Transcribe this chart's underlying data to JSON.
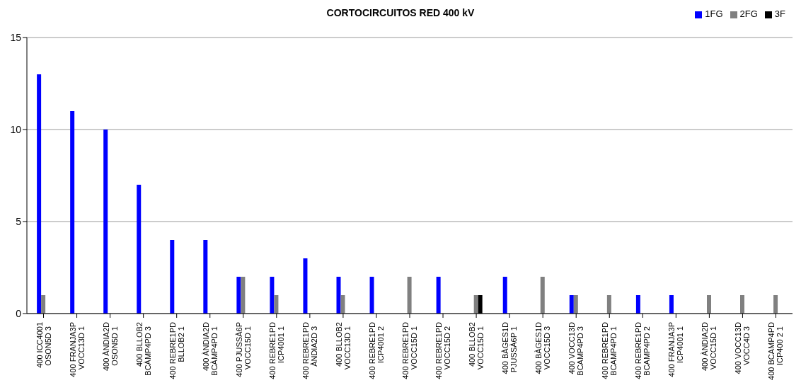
{
  "chart_data": {
    "type": "bar",
    "title": "CORTOCIRCUITOS RED 400 kV",
    "categories": [
      "400 ICC4001 OSON5D 3",
      "400 FRANJA3P VOCC13D 1",
      "400 ÀNDIA2D OSON5D 1",
      "400 BLLOB2 BCÀMP4PD 3",
      "400 REBRE1PD BLLOB2 1",
      "400 ÀNDIA2D BCÀMP4PD 1",
      "400 PJUSSÀ6P VOCC15D 1",
      "400 REBRE1PD ICP4001 1",
      "400 REBRE1PD ÀNDIA2D 3",
      "400 BLLOB2 VOCC13D 1",
      "400 REBRE1PD ICP4001 2",
      "400 REBRE1PD VOCC15D 1",
      "400 REBRE1PD VOCC15D 2",
      "400 BLLOB2 VOCC15D 1",
      "400 BÀGES1D PJUSSÀ6P 1",
      "400 BÀGES1D VOCC15D 3",
      "400 VOCC13D BCAMP4PD 3",
      "400 REBRE1PD BCAMP4PD 1",
      "400 REBRE1PD BCAMP4PD 2",
      "400 FRANJA3P ICP4001 1",
      "400 ÀNDIA2D VOCC15D 1",
      "400 VOCC13D VOCC4D 3",
      "400 BCAMP4PD ICP400 2 1"
    ],
    "series": [
      {
        "name": "1FG",
        "color": "#0000ff",
        "values": [
          13,
          11,
          10,
          7,
          4,
          4,
          2,
          2,
          3,
          2,
          2,
          0,
          2,
          0,
          2,
          0,
          1,
          0,
          1,
          1,
          0,
          0,
          0
        ]
      },
      {
        "name": "2FG",
        "color": "#808080",
        "values": [
          1,
          0,
          0,
          0,
          0,
          0,
          2,
          1,
          0,
          1,
          0,
          2,
          0,
          1,
          0,
          2,
          1,
          1,
          0,
          0,
          1,
          1,
          1
        ]
      },
      {
        "name": "3F",
        "color": "#000000",
        "values": [
          0,
          0,
          0,
          0,
          0,
          0,
          0,
          0,
          0,
          0,
          0,
          0,
          0,
          1,
          0,
          0,
          0,
          0,
          0,
          0,
          0,
          0,
          0
        ]
      }
    ],
    "ylim": [
      0,
      15
    ],
    "yticks": [
      0,
      5,
      10,
      15
    ],
    "grid": "y",
    "legend": "top right"
  }
}
